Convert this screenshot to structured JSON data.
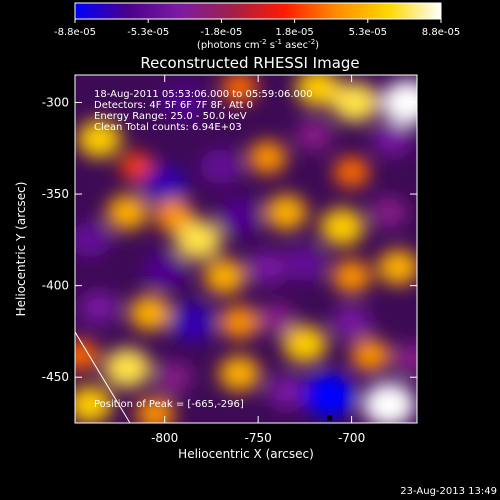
{
  "colorbar": {
    "ticks": [
      "-8.8e-05",
      "-5.3e-05",
      "-1.8e-05",
      "1.8e-05",
      "5.3e-05",
      "8.8e-05"
    ],
    "units_prefix": "(photons cm",
    "units_exp1": "-2",
    "units_mid": " s",
    "units_exp2": "-1",
    "units_mid2": " asec",
    "units_exp3": "-2",
    "units_suffix": ")",
    "colors": [
      "#0000ff",
      "#4b008c",
      "#7d1aa3",
      "#a0204a",
      "#ff1a00",
      "#ff8c00",
      "#ffd700",
      "#ffffff"
    ]
  },
  "plot": {
    "title": "Reconstructed RHESSI Image",
    "info_lines": [
      "18-Aug-2011 05:53:06.000 to 05:59:06.000",
      "Detectors: 4F 5F 6F 7F 8F, Att 0",
      "Energy Range: 25.0 - 50.0 keV",
      "Clean    Total counts: 6.94E+03"
    ],
    "peak_label": "Position of Peak = [-665,-296]",
    "xlabel": "Heliocentric X (arcsec)",
    "ylabel": "Heliocentric Y (arcsec)",
    "xticks": [
      "-800",
      "-750",
      "-700"
    ],
    "yticks": [
      "-300",
      "-350",
      "-400",
      "-450"
    ]
  },
  "footer": {
    "timestamp": "23-Aug-2013 13:49"
  },
  "chart_data": {
    "type": "heatmap",
    "title": "Reconstructed RHESSI Image",
    "xlabel": "Heliocentric X (arcsec)",
    "ylabel": "Heliocentric Y (arcsec)",
    "xlim": [
      -848,
      -665
    ],
    "ylim": [
      -475,
      -285
    ],
    "zlim": [
      -8.8e-05,
      8.8e-05
    ],
    "peak": [
      -665,
      -296
    ],
    "blobs": [
      {
        "x": -790,
        "y": -300,
        "v": -6e-05
      },
      {
        "x": -760,
        "y": -292,
        "v": 3e-05
      },
      {
        "x": -718,
        "y": -292,
        "v": 6e-05
      },
      {
        "x": -698,
        "y": -300,
        "v": 7e-05
      },
      {
        "x": -678,
        "y": -320,
        "v": -4e-05
      },
      {
        "x": -670,
        "y": -300,
        "v": 8.8e-05
      },
      {
        "x": -835,
        "y": -320,
        "v": 6e-05
      },
      {
        "x": -815,
        "y": -335,
        "v": 2e-05
      },
      {
        "x": -770,
        "y": -335,
        "v": -5e-05
      },
      {
        "x": -745,
        "y": -330,
        "v": 4e-05
      },
      {
        "x": -720,
        "y": -318,
        "v": -3e-05
      },
      {
        "x": -700,
        "y": -338,
        "v": 3e-05
      },
      {
        "x": -800,
        "y": -345,
        "v": -7e-05
      },
      {
        "x": -820,
        "y": -360,
        "v": 5e-05
      },
      {
        "x": -795,
        "y": -362,
        "v": 4e-05
      },
      {
        "x": -840,
        "y": -375,
        "v": -5e-05
      },
      {
        "x": -760,
        "y": -362,
        "v": -6e-05
      },
      {
        "x": -735,
        "y": -360,
        "v": 5e-05
      },
      {
        "x": -705,
        "y": -368,
        "v": 6e-05
      },
      {
        "x": -680,
        "y": -360,
        "v": -3e-05
      },
      {
        "x": -782,
        "y": -375,
        "v": 7e-05
      },
      {
        "x": -800,
        "y": -392,
        "v": -6e-05
      },
      {
        "x": -768,
        "y": -395,
        "v": 5e-05
      },
      {
        "x": -745,
        "y": -390,
        "v": -4e-05
      },
      {
        "x": -725,
        "y": -388,
        "v": -5e-05
      },
      {
        "x": -700,
        "y": -395,
        "v": 4e-05
      },
      {
        "x": -675,
        "y": -390,
        "v": 5e-05
      },
      {
        "x": -835,
        "y": -412,
        "v": -4e-05
      },
      {
        "x": -808,
        "y": -415,
        "v": 5e-05
      },
      {
        "x": -785,
        "y": -420,
        "v": -7e-05
      },
      {
        "x": -760,
        "y": -420,
        "v": 4e-05
      },
      {
        "x": -740,
        "y": -418,
        "v": -3e-05
      },
      {
        "x": -700,
        "y": -420,
        "v": -4e-05
      },
      {
        "x": -725,
        "y": -432,
        "v": 6e-05
      },
      {
        "x": -690,
        "y": -438,
        "v": 4e-05
      },
      {
        "x": -845,
        "y": -438,
        "v": 3e-05
      },
      {
        "x": -820,
        "y": -445,
        "v": 7e-05
      },
      {
        "x": -795,
        "y": -450,
        "v": -3e-05
      },
      {
        "x": -760,
        "y": -448,
        "v": 5e-05
      },
      {
        "x": -735,
        "y": -458,
        "v": -4e-05
      },
      {
        "x": -712,
        "y": -460,
        "v": -8.8e-05
      },
      {
        "x": -680,
        "y": -465,
        "v": 8.8e-05
      },
      {
        "x": -668,
        "y": -440,
        "v": -3e-05
      },
      {
        "x": -840,
        "y": -465,
        "v": 6e-05
      },
      {
        "x": -805,
        "y": -470,
        "v": 4e-05
      }
    ]
  }
}
